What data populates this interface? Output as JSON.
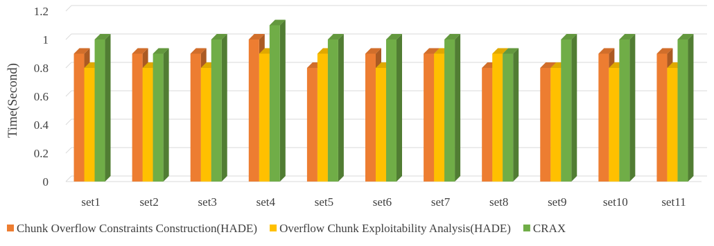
{
  "chart_data": {
    "type": "bar",
    "title": "",
    "xlabel": "",
    "ylabel": "Time(Second)",
    "ylim": [
      0,
      1.2
    ],
    "yticks": [
      "0",
      "0.2",
      "0.4",
      "0.6",
      "0.8",
      "1",
      "1.2"
    ],
    "grid": true,
    "legend_position": "bottom",
    "categories": [
      "set1",
      "set2",
      "set3",
      "set4",
      "set5",
      "set6",
      "set7",
      "set8",
      "set9",
      "set10",
      "set11"
    ],
    "series": [
      {
        "name": "Chunk Overflow Constraints Construction(HADE)",
        "color": "#ED7D31",
        "values": [
          0.9,
          0.9,
          0.9,
          1.0,
          0.8,
          0.9,
          0.9,
          0.8,
          0.8,
          0.9,
          0.9
        ]
      },
      {
        "name": "Overflow Chunk Exploitability Analysis(HADE)",
        "color": "#FFC000",
        "values": [
          0.8,
          0.8,
          0.8,
          0.9,
          0.9,
          0.8,
          0.9,
          0.9,
          0.8,
          0.8,
          0.8
        ]
      },
      {
        "name": "CRAX",
        "color": "#70AD47",
        "values": [
          1.0,
          0.9,
          1.0,
          1.1,
          1.0,
          1.0,
          1.0,
          0.9,
          1.0,
          1.0,
          1.0
        ]
      }
    ]
  }
}
